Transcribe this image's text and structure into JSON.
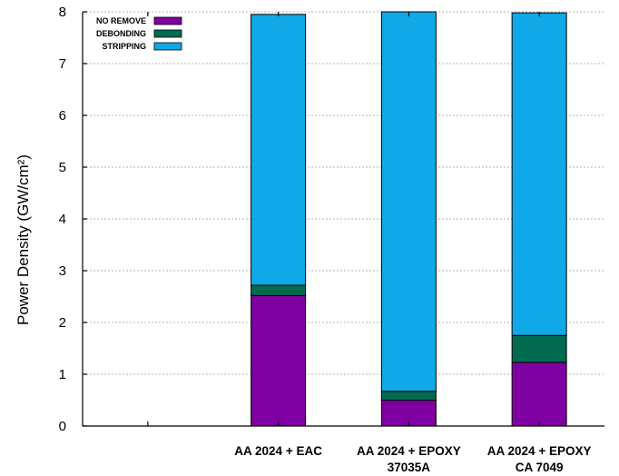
{
  "chart_data": {
    "type": "bar",
    "stacked": true,
    "title": "",
    "xlabel": "",
    "ylabel": "Power Density (GW/cm²)",
    "ylim": [
      0,
      8
    ],
    "yticks": [
      "0",
      "1",
      "2",
      "3",
      "4",
      "5",
      "6",
      "7",
      "8"
    ],
    "grid": true,
    "legend_position": "top-left",
    "categories": [
      [
        "",
        ""
      ],
      [
        "AA 2024 + EAC",
        ""
      ],
      [
        "AA 2024 + EPOXY",
        "37035A"
      ],
      [
        "AA 2024 + EPOXY",
        "CA 7049"
      ]
    ],
    "series": [
      {
        "name": "NO REMOVE",
        "color": "#7f00a0",
        "values": [
          0,
          2.52,
          0.5,
          1.23
        ]
      },
      {
        "name": "DEBONDING",
        "color": "#006b4e",
        "values": [
          0,
          0.2,
          0.17,
          0.52
        ]
      },
      {
        "name": "STRIPPING",
        "color": "#10a8e6",
        "values": [
          0,
          5.23,
          7.33,
          6.23
        ]
      }
    ]
  }
}
